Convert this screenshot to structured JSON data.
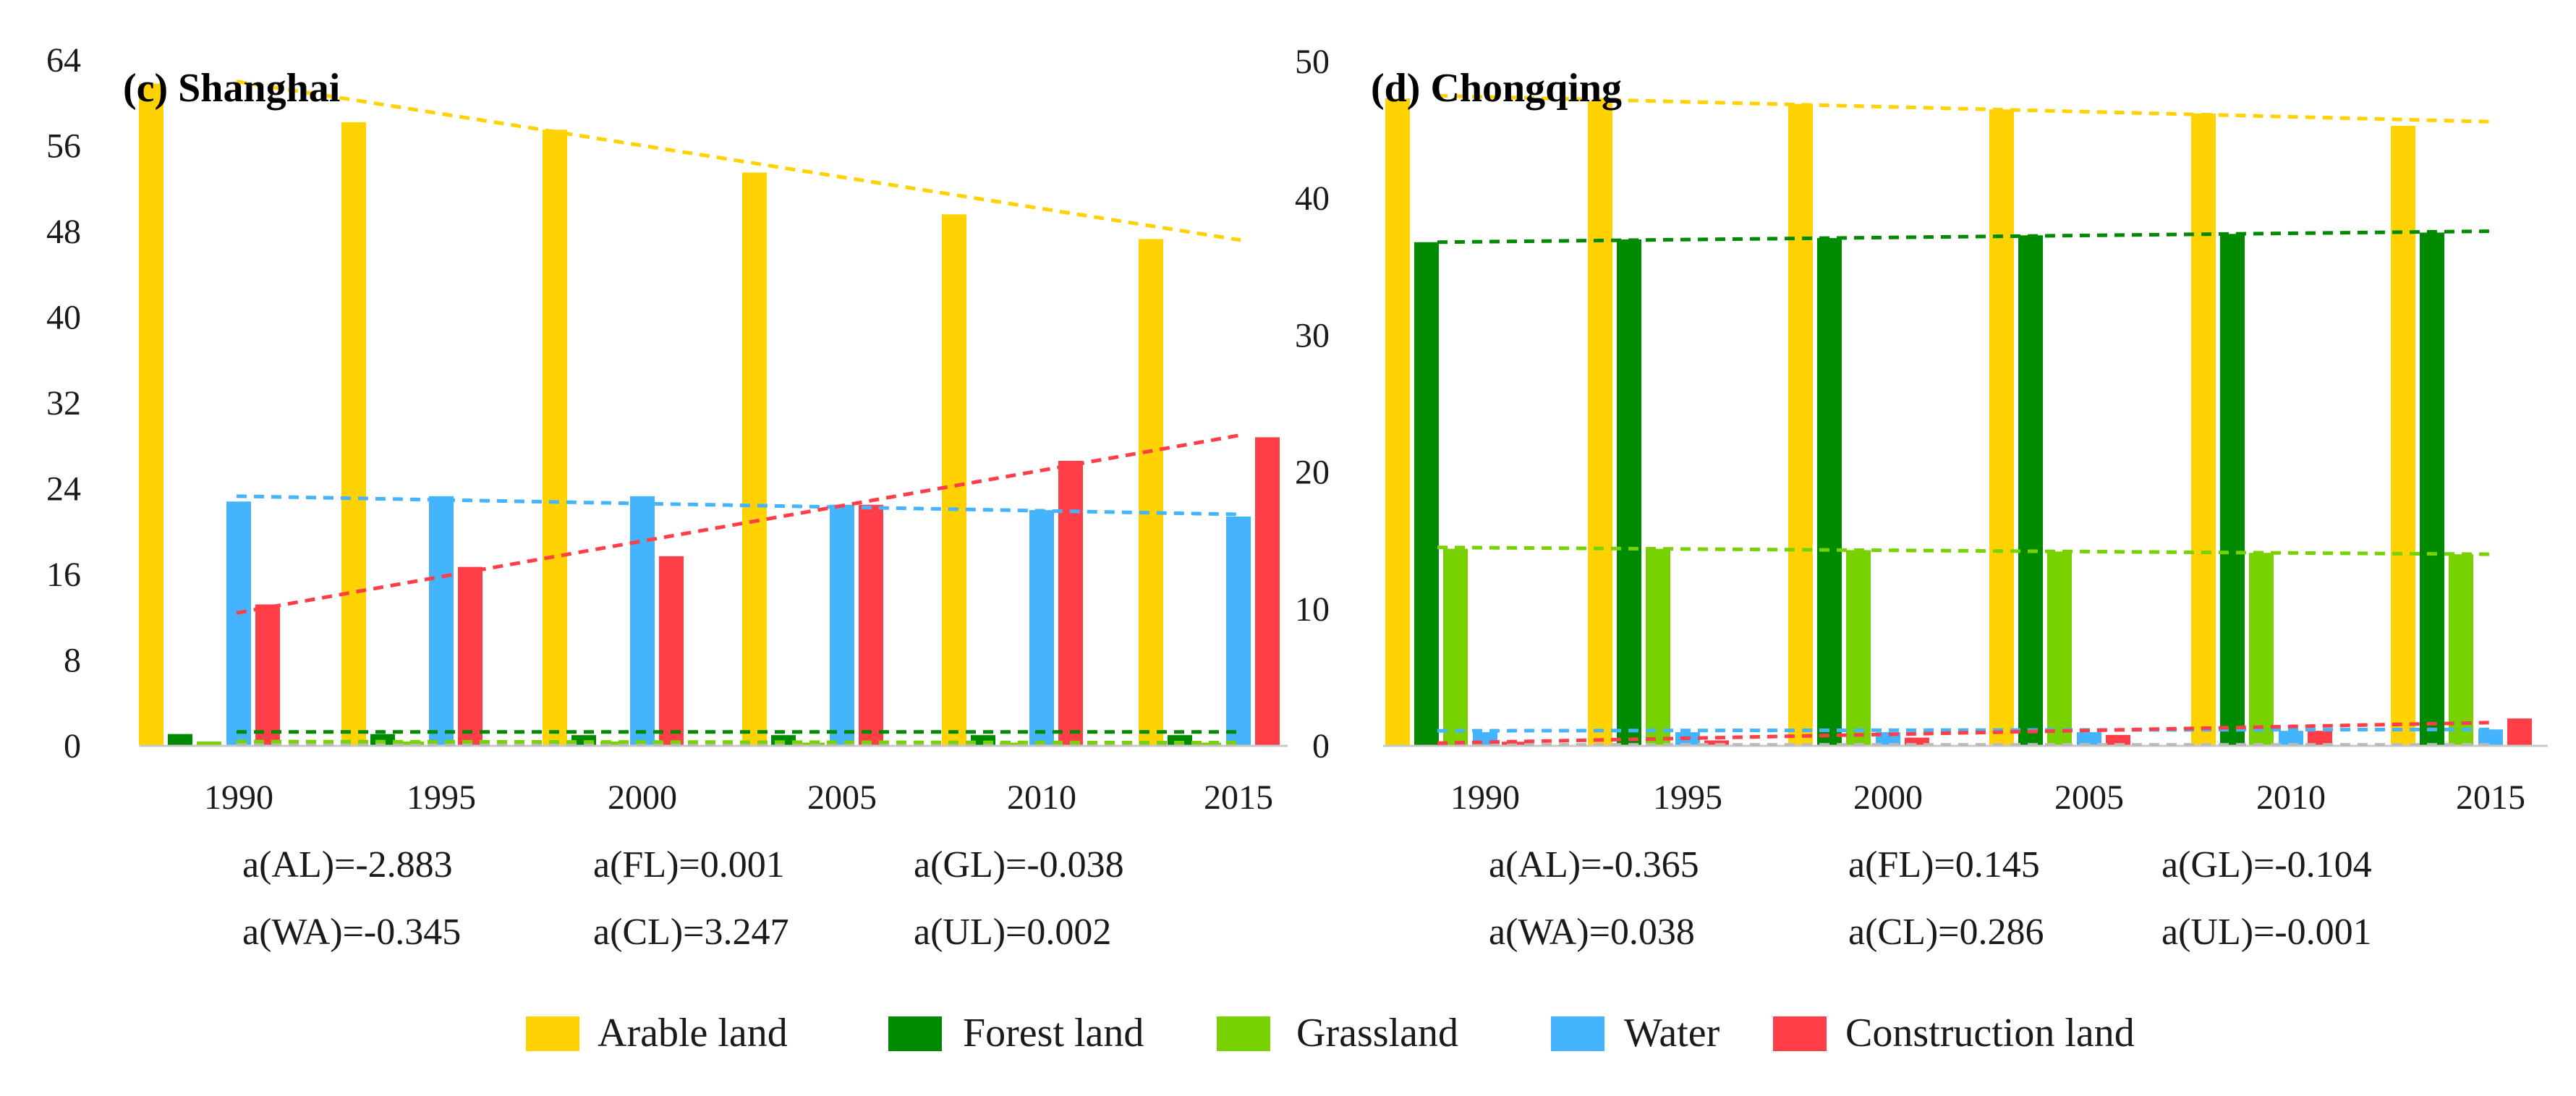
{
  "chart_data": [
    {
      "type": "bar",
      "title": "(c) Shanghai",
      "categories": [
        "1990",
        "1995",
        "2000",
        "2005",
        "2010",
        "2015"
      ],
      "ylim": [
        0,
        64
      ],
      "yticks": [
        0,
        8,
        16,
        24,
        32,
        40,
        48,
        56,
        64
      ],
      "series": [
        {
          "name": "Arable land",
          "values": [
            61.8,
            58.2,
            57.5,
            53.5,
            49.6,
            47.3
          ]
        },
        {
          "name": "Forest land",
          "values": [
            1.1,
            1.1,
            1.0,
            1.0,
            1.0,
            1.0
          ]
        },
        {
          "name": "Grassland",
          "values": [
            0.4,
            0.4,
            0.4,
            0.3,
            0.3,
            0.3
          ]
        },
        {
          "name": "Water",
          "values": [
            22.8,
            23.3,
            23.3,
            22.5,
            22.0,
            21.4
          ]
        },
        {
          "name": "Construction land",
          "values": [
            13.2,
            16.7,
            17.7,
            22.5,
            26.6,
            28.8
          ]
        }
      ],
      "trendlines": [
        {
          "series": "Arable land",
          "start": 62.0,
          "end": 47.2
        },
        {
          "series": "Forest land",
          "start": 1.3,
          "end": 1.3
        },
        {
          "series": "Grassland",
          "start": 0.4,
          "end": 0.3
        },
        {
          "series": "Water",
          "start": 23.3,
          "end": 21.6
        },
        {
          "series": "Construction land",
          "start": 12.4,
          "end": 29.0
        }
      ],
      "coefficients": [
        [
          "a(AL)=-2.883",
          "a(FL)=0.001",
          "a(GL)=-0.038"
        ],
        [
          "a(WA)=-0.345",
          "a(CL)=3.247",
          "a(UL)=0.002"
        ]
      ]
    },
    {
      "type": "bar",
      "title": "(d) Chongqing",
      "categories": [
        "1990",
        "1995",
        "2000",
        "2005",
        "2010",
        "2015"
      ],
      "ylim": [
        0,
        50
      ],
      "yticks": [
        0,
        10,
        20,
        30,
        40,
        50
      ],
      "series": [
        {
          "name": "Arable land",
          "values": [
            47.3,
            47.1,
            46.9,
            46.5,
            46.2,
            45.3
          ]
        },
        {
          "name": "Forest land",
          "values": [
            36.8,
            37.0,
            37.1,
            37.3,
            37.4,
            37.5
          ]
        },
        {
          "name": "Grassland",
          "values": [
            14.4,
            14.4,
            14.3,
            14.2,
            14.1,
            14.0
          ]
        },
        {
          "name": "Water",
          "values": [
            1.0,
            1.0,
            1.0,
            1.0,
            1.1,
            1.2
          ]
        },
        {
          "name": "Construction land",
          "values": [
            0.3,
            0.4,
            0.6,
            0.8,
            1.1,
            2.0
          ]
        }
      ],
      "trendlines": [
        {
          "series": "Arable land",
          "start": 47.5,
          "end": 45.6
        },
        {
          "series": "Forest land",
          "start": 36.8,
          "end": 37.6
        },
        {
          "series": "Grassland",
          "start": 14.5,
          "end": 14.0
        },
        {
          "series": "Water",
          "start": 1.1,
          "end": 1.2
        },
        {
          "series": "Construction land",
          "start": 0.2,
          "end": 1.7
        }
      ],
      "coefficients": [
        [
          "a(AL)=-0.365",
          "a(FL)=0.145",
          "a(GL)=-0.104"
        ],
        [
          "a(WA)=0.038",
          "a(CL)=0.286",
          "a(UL)=-0.001"
        ]
      ]
    }
  ],
  "legend": [
    {
      "name": "Arable  land",
      "color": "#FFD200"
    },
    {
      "name": "Forest land",
      "color": "#008A00"
    },
    {
      "name": "Grassland",
      "color": "#77D200"
    },
    {
      "name": "Water",
      "color": "#44B4FF"
    },
    {
      "name": "Construction land",
      "color": "#FF3E48"
    }
  ],
  "colors": {
    "Arable land": "#FFD200",
    "Forest land": "#008A00",
    "Grassland": "#77D200",
    "Water": "#44B4FF",
    "Construction land": "#FF3E48",
    "axis": "#c8c8c8",
    "unused_trend": "#bbbbbb"
  }
}
